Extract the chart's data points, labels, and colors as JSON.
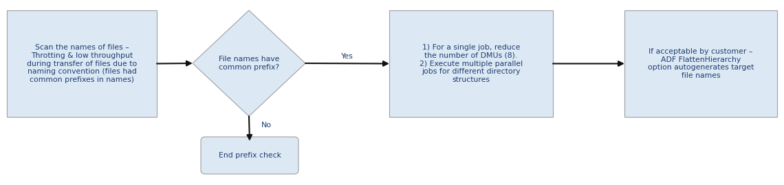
{
  "bg_color": "#ffffff",
  "box_fill": "#dce9f5",
  "box_edge": "#a0a0a0",
  "diamond_fill": "#dce9f5",
  "diamond_edge": "#a0a0a0",
  "rounded_fill": "#dce9f5",
  "rounded_edge": "#a0a0a0",
  "text_color": "#1f3c6e",
  "arrow_color": "#111111",
  "box1_text": "Scan the names of files –\nThrotting & low throughput\nduring transfer of files due to\nnaming convention (files had\ncommon prefixes in names)",
  "diamond_text": "File names have\ncommon prefix?",
  "box3_text": "1) For a single job, reduce\nthe number of DMUs (8).\n2) Execute multiple parallel\njobs for different directory\nstructures",
  "box4_text": "If acceptable by customer –\nADF FlattenHierarchy\noption autogenerates target\nfile names",
  "rounded_text": "End prefix check",
  "yes_label": "Yes",
  "no_label": "No",
  "font_size": 7.8,
  "label_font_size": 8.0
}
